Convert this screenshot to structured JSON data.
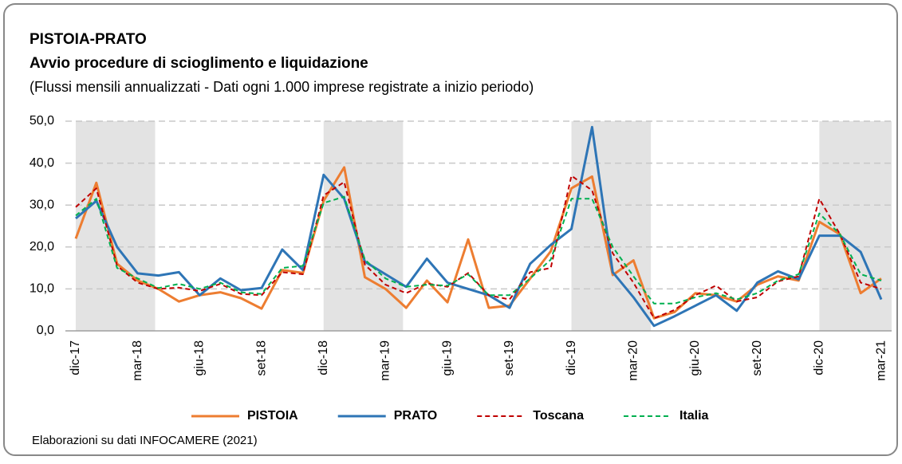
{
  "chart_data": {
    "type": "line",
    "title": "PISTOIA-PRATO",
    "subtitle": "Avvio procedure di scioglimento e liquidazione",
    "note": "(Flussi mensili annualizzati - Dati ogni 1.000 imprese registrate a inizio periodo)",
    "source": "Elaborazioni su dati INFOCAMERE (2021)",
    "categories": [
      "dic-17",
      null,
      null,
      "mar-18",
      null,
      null,
      "giu-18",
      null,
      null,
      "set-18",
      null,
      null,
      "dic-18",
      null,
      null,
      "mar-19",
      null,
      null,
      "giu-19",
      null,
      null,
      "set-19",
      null,
      null,
      "dic-19",
      null,
      null,
      "mar-20",
      null,
      null,
      "giu-20",
      null,
      null,
      "set-20",
      null,
      null,
      "dic-20",
      null,
      null,
      "mar-21"
    ],
    "series": [
      {
        "name": "PISTOIA",
        "color": "#ED7D31",
        "style": "solid",
        "values": [
          22,
          35.3,
          16,
          12,
          10,
          7,
          8.5,
          9.2,
          7.8,
          5.3,
          14.5,
          13.8,
          31,
          39,
          12.8,
          10,
          5.5,
          12,
          6.8,
          21.8,
          5.5,
          6,
          12.5,
          19,
          34,
          36.8,
          13.3,
          16.8,
          3,
          4.5,
          9,
          8.5,
          7,
          11,
          13,
          12,
          26,
          23,
          9,
          12.5
        ]
      },
      {
        "name": "PRATO",
        "color": "#2E75B6",
        "style": "solid",
        "values": [
          26.8,
          31,
          20,
          13.7,
          13.2,
          14,
          8.5,
          12.5,
          9.7,
          10.2,
          19.4,
          14.5,
          37.2,
          31.5,
          16.5,
          13.5,
          10.5,
          17.2,
          11.5,
          10,
          8.5,
          5.5,
          16,
          20.5,
          24.3,
          48.6,
          14,
          8,
          1.2,
          3.5,
          6,
          8.5,
          4.8,
          11.5,
          14.2,
          12.3,
          22.7,
          22.7,
          18.8,
          7.5
        ]
      },
      {
        "name": "Toscana",
        "color": "#C00000",
        "style": "dashed",
        "values": [
          29.5,
          34,
          15.5,
          11.5,
          10,
          10.3,
          9.5,
          11.2,
          8.8,
          8.5,
          14,
          13.5,
          32.3,
          35.5,
          15.8,
          11,
          9,
          11.3,
          10.5,
          13.8,
          8.5,
          7.5,
          14,
          15,
          37,
          33.5,
          18.5,
          11.5,
          3,
          5,
          8.5,
          10.8,
          7,
          8,
          11.8,
          13,
          31.5,
          23,
          11.5,
          10
        ]
      },
      {
        "name": "Italia",
        "color": "#00B050",
        "style": "dashed",
        "values": [
          27.5,
          31.5,
          15,
          12.5,
          10.2,
          11.2,
          10,
          11.5,
          9.2,
          8.8,
          15,
          15.5,
          30.5,
          32,
          17,
          12.5,
          10.5,
          11,
          10.8,
          13.5,
          8.5,
          8.5,
          12.5,
          17,
          31.5,
          31.5,
          20,
          13,
          6.5,
          6.5,
          8,
          9,
          7.5,
          9,
          12,
          13.5,
          28,
          23,
          13.5,
          12
        ]
      }
    ],
    "ylim": [
      0,
      50
    ],
    "yticks": [
      {
        "value": 0,
        "label": "0,0"
      },
      {
        "value": 10,
        "label": "10,0"
      },
      {
        "value": 20,
        "label": "20,0"
      },
      {
        "value": 30,
        "label": "30,0"
      },
      {
        "value": 40,
        "label": "40,0"
      },
      {
        "value": 50,
        "label": "50,0"
      }
    ],
    "grid": true,
    "legend": "bottom"
  }
}
